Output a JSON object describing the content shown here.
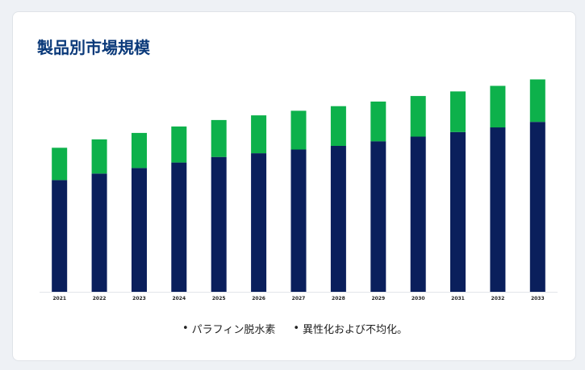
{
  "card": {
    "title": "製品別市場規模"
  },
  "chart_data": {
    "type": "bar",
    "stacked": true,
    "categories": [
      "2021",
      "2022",
      "2023",
      "2024",
      "2025",
      "2026",
      "2027",
      "2028",
      "2029",
      "2030",
      "2031",
      "2032",
      "2033"
    ],
    "series": [
      {
        "name": "パラフィン脱水素",
        "color": "#0a1f5c",
        "values": [
          121,
          128,
          134,
          140,
          146,
          150,
          154,
          158,
          163,
          168,
          173,
          178,
          184
        ]
      },
      {
        "name": "異性化および不均化。",
        "color": "#0db14b",
        "values": [
          35,
          37,
          38,
          39,
          40,
          41,
          42,
          43,
          43,
          44,
          44,
          45,
          46
        ]
      }
    ],
    "ylim": [
      0,
      240
    ],
    "grid": false,
    "legend_position": "bottom"
  },
  "legend": {
    "bullet": "•",
    "items": [
      "パラフィン脱水素",
      "異性化および不均化。"
    ]
  }
}
